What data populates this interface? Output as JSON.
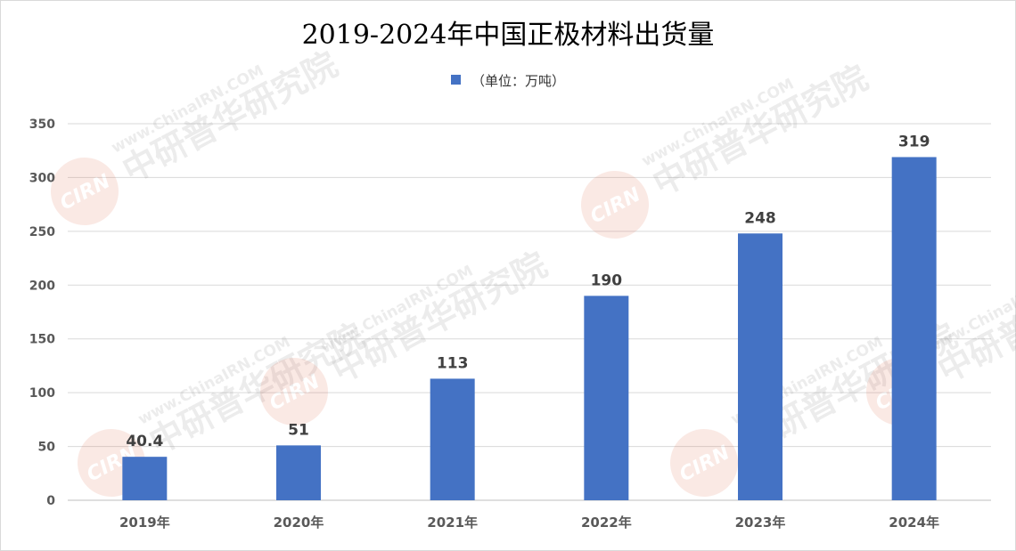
{
  "chart_data": {
    "type": "bar",
    "title": "2019-2024年中国正极材料出货量",
    "categories": [
      "2019年",
      "2020年",
      "2021年",
      "2022年",
      "2023年",
      "2024年"
    ],
    "series": [
      {
        "name": "（单位：万吨）",
        "values": [
          40.4,
          51,
          113,
          190,
          248,
          319
        ],
        "data_labels": [
          "40.4",
          "51",
          "113",
          "190",
          "248",
          "319"
        ]
      }
    ],
    "ylim": [
      0,
      350
    ],
    "yticks": [
      0,
      50,
      100,
      150,
      200,
      250,
      300,
      350
    ],
    "grid": true,
    "legend_position": "top",
    "bar_color": "#4472c4"
  },
  "watermark": {
    "url": "www.ChinaIRN.COM",
    "name": "中研普华研究院",
    "logo": "CIRN"
  }
}
